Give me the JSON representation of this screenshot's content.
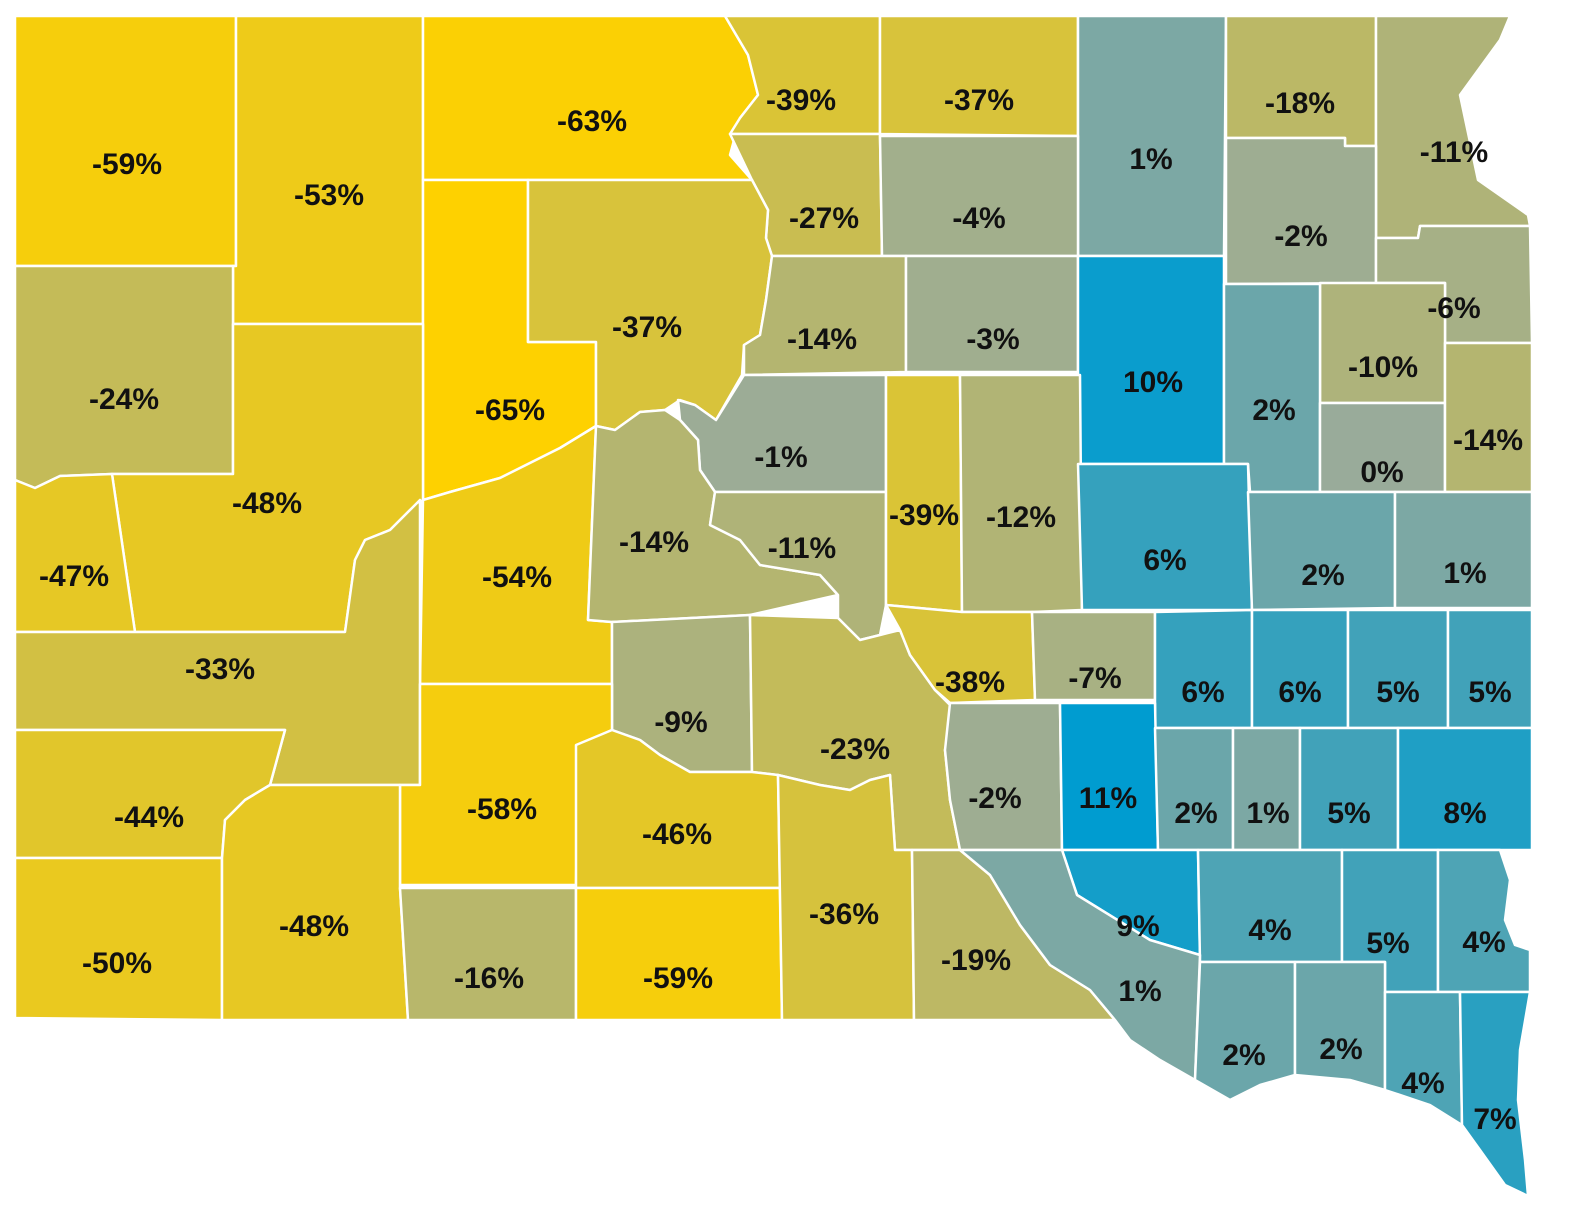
{
  "palette": {
    "negative": "#fed100",
    "neutral": "#99ab9a",
    "positive": "#009cd0",
    "border": "#ffffff",
    "label": "#111111"
  },
  "counties": [
    {
      "id": "c01",
      "value": -59,
      "label": "-59%"
    },
    {
      "id": "c02",
      "value": -53,
      "label": "-53%"
    },
    {
      "id": "c03",
      "value": -63,
      "label": "-63%"
    },
    {
      "id": "c04",
      "value": -39,
      "label": "-39%"
    },
    {
      "id": "c05",
      "value": -37,
      "label": "-37%"
    },
    {
      "id": "c06",
      "value": 1,
      "label": "1%"
    },
    {
      "id": "c07",
      "value": -18,
      "label": "-18%"
    },
    {
      "id": "c08",
      "value": -11,
      "label": "-11%"
    },
    {
      "id": "c09",
      "value": -24,
      "label": "-24%"
    },
    {
      "id": "c10",
      "value": -27,
      "label": "-27%"
    },
    {
      "id": "c11",
      "value": -4,
      "label": "-4%"
    },
    {
      "id": "c12",
      "value": -2,
      "label": "-2%"
    },
    {
      "id": "c13",
      "value": -65,
      "label": "-65%"
    },
    {
      "id": "c14",
      "value": -37,
      "label": "-37%"
    },
    {
      "id": "c15",
      "value": -14,
      "label": "-14%"
    },
    {
      "id": "c16",
      "value": -3,
      "label": "-3%"
    },
    {
      "id": "c17",
      "value": 10,
      "label": "10%"
    },
    {
      "id": "c18",
      "value": -6,
      "label": "-6%"
    },
    {
      "id": "c19",
      "value": -10,
      "label": "-10%"
    },
    {
      "id": "c20",
      "value": 2,
      "label": "2%"
    },
    {
      "id": "c21",
      "value": -48,
      "label": "-48%"
    },
    {
      "id": "c22",
      "value": -1,
      "label": "-1%"
    },
    {
      "id": "c23",
      "value": 0,
      "label": "0%"
    },
    {
      "id": "c24",
      "value": -14,
      "label": "-14%"
    },
    {
      "id": "c25",
      "value": -47,
      "label": "-47%"
    },
    {
      "id": "c26",
      "value": -54,
      "label": "-54%"
    },
    {
      "id": "c27",
      "value": -14,
      "label": "-14%"
    },
    {
      "id": "c28",
      "value": -11,
      "label": "-11%"
    },
    {
      "id": "c29",
      "value": -39,
      "label": "-39%"
    },
    {
      "id": "c30",
      "value": -12,
      "label": "-12%"
    },
    {
      "id": "c31",
      "value": 6,
      "label": "6%"
    },
    {
      "id": "c32",
      "value": 2,
      "label": "2%"
    },
    {
      "id": "c33",
      "value": 1,
      "label": "1%"
    },
    {
      "id": "c34",
      "value": -33,
      "label": "-33%"
    },
    {
      "id": "c35",
      "value": -9,
      "label": "-9%"
    },
    {
      "id": "c36",
      "value": -23,
      "label": "-23%"
    },
    {
      "id": "c37",
      "value": -38,
      "label": "-38%"
    },
    {
      "id": "c38",
      "value": -7,
      "label": "-7%"
    },
    {
      "id": "c39",
      "value": 6,
      "label": "6%"
    },
    {
      "id": "c40",
      "value": 6,
      "label": "6%"
    },
    {
      "id": "c41",
      "value": 5,
      "label": "5%"
    },
    {
      "id": "c42",
      "value": 5,
      "label": "5%"
    },
    {
      "id": "c43",
      "value": -44,
      "label": "-44%"
    },
    {
      "id": "c44",
      "value": -58,
      "label": "-58%"
    },
    {
      "id": "c45",
      "value": -46,
      "label": "-46%"
    },
    {
      "id": "c46",
      "value": -2,
      "label": "-2%"
    },
    {
      "id": "c47",
      "value": 11,
      "label": "11%"
    },
    {
      "id": "c48",
      "value": 2,
      "label": "2%"
    },
    {
      "id": "c49",
      "value": 1,
      "label": "1%"
    },
    {
      "id": "c50",
      "value": 5,
      "label": "5%"
    },
    {
      "id": "c51",
      "value": 8,
      "label": "8%"
    },
    {
      "id": "c52",
      "value": -50,
      "label": "-50%"
    },
    {
      "id": "c53",
      "value": -48,
      "label": "-48%"
    },
    {
      "id": "c54",
      "value": -16,
      "label": "-16%"
    },
    {
      "id": "c55",
      "value": -59,
      "label": "-59%"
    },
    {
      "id": "c56",
      "value": -36,
      "label": "-36%"
    },
    {
      "id": "c57",
      "value": -19,
      "label": "-19%"
    },
    {
      "id": "c58",
      "value": 9,
      "label": "9%"
    },
    {
      "id": "c59",
      "value": 4,
      "label": "4%"
    },
    {
      "id": "c60",
      "value": 5,
      "label": "5%"
    },
    {
      "id": "c61",
      "value": 4,
      "label": "4%"
    },
    {
      "id": "c62",
      "value": 1,
      "label": "1%"
    },
    {
      "id": "c63",
      "value": 2,
      "label": "2%"
    },
    {
      "id": "c64",
      "value": 2,
      "label": "2%"
    },
    {
      "id": "c65",
      "value": 4,
      "label": "4%"
    },
    {
      "id": "c66",
      "value": 7,
      "label": "7%"
    }
  ]
}
